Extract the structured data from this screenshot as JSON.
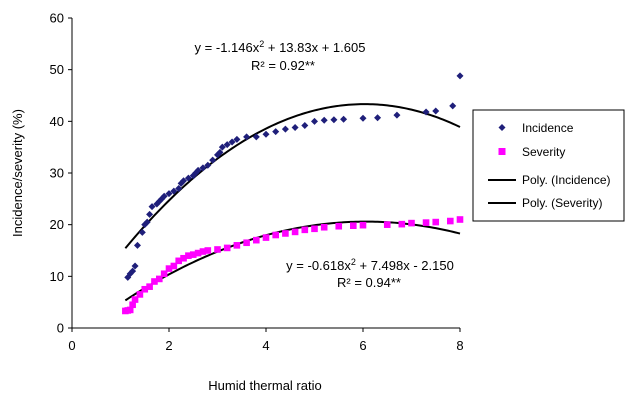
{
  "chart_data": {
    "type": "scatter",
    "xlabel": "Humid thermal ratio",
    "ylabel": "Incidence/severity (%)",
    "xlim": [
      0,
      8
    ],
    "ylim": [
      0,
      60
    ],
    "x_ticks": [
      "0",
      "2",
      "4",
      "6",
      "8"
    ],
    "y_ticks": [
      "0",
      "10",
      "20",
      "30",
      "40",
      "50",
      "60"
    ],
    "grid": false,
    "legend_position": "right",
    "series": [
      {
        "name": "Incidence",
        "marker": "diamond",
        "color": "#1f1f7a",
        "points": [
          [
            1.15,
            9.8
          ],
          [
            1.2,
            10.5
          ],
          [
            1.25,
            11
          ],
          [
            1.3,
            12
          ],
          [
            1.35,
            16
          ],
          [
            1.45,
            18.5
          ],
          [
            1.5,
            20
          ],
          [
            1.55,
            20.5
          ],
          [
            1.6,
            22
          ],
          [
            1.65,
            23.5
          ],
          [
            1.75,
            24
          ],
          [
            1.8,
            24.5
          ],
          [
            1.85,
            25
          ],
          [
            1.9,
            25.5
          ],
          [
            2.0,
            26
          ],
          [
            2.1,
            26.5
          ],
          [
            2.2,
            27
          ],
          [
            2.25,
            28
          ],
          [
            2.3,
            28.5
          ],
          [
            2.4,
            29
          ],
          [
            2.5,
            29.5
          ],
          [
            2.55,
            30
          ],
          [
            2.6,
            30.5
          ],
          [
            2.7,
            31
          ],
          [
            2.8,
            31.5
          ],
          [
            2.9,
            32.5
          ],
          [
            3.0,
            33.5
          ],
          [
            3.05,
            34
          ],
          [
            3.1,
            35
          ],
          [
            3.2,
            35.5
          ],
          [
            3.3,
            36
          ],
          [
            3.4,
            36.5
          ],
          [
            3.6,
            37
          ],
          [
            3.8,
            37
          ],
          [
            4.0,
            37.5
          ],
          [
            4.2,
            38
          ],
          [
            4.4,
            38.5
          ],
          [
            4.6,
            38.8
          ],
          [
            4.8,
            39.2
          ],
          [
            5.0,
            40
          ],
          [
            5.2,
            40.2
          ],
          [
            5.4,
            40.3
          ],
          [
            5.6,
            40.4
          ],
          [
            6.0,
            40.6
          ],
          [
            6.3,
            40.7
          ],
          [
            6.7,
            41.2
          ],
          [
            7.3,
            41.8
          ],
          [
            7.5,
            42
          ],
          [
            7.85,
            43
          ],
          [
            8.0,
            48.8
          ]
        ]
      },
      {
        "name": "Severity",
        "marker": "square",
        "color": "#ff00ff",
        "points": [
          [
            1.1,
            3.3
          ],
          [
            1.15,
            3.4
          ],
          [
            1.2,
            3.5
          ],
          [
            1.25,
            4.5
          ],
          [
            1.3,
            5.5
          ],
          [
            1.4,
            6.5
          ],
          [
            1.5,
            7.5
          ],
          [
            1.6,
            8
          ],
          [
            1.7,
            9
          ],
          [
            1.8,
            9.5
          ],
          [
            1.9,
            10.5
          ],
          [
            2.0,
            11.5
          ],
          [
            2.1,
            12
          ],
          [
            2.2,
            13
          ],
          [
            2.3,
            13.5
          ],
          [
            2.4,
            14
          ],
          [
            2.5,
            14.2
          ],
          [
            2.6,
            14.5
          ],
          [
            2.7,
            14.8
          ],
          [
            2.8,
            15
          ],
          [
            3.0,
            15.2
          ],
          [
            3.2,
            15.5
          ],
          [
            3.4,
            16
          ],
          [
            3.6,
            16.5
          ],
          [
            3.8,
            17
          ],
          [
            4.0,
            17.5
          ],
          [
            4.2,
            18
          ],
          [
            4.4,
            18.3
          ],
          [
            4.6,
            18.6
          ],
          [
            4.8,
            19
          ],
          [
            5.0,
            19.2
          ],
          [
            5.2,
            19.5
          ],
          [
            5.5,
            19.7
          ],
          [
            5.8,
            19.8
          ],
          [
            6.0,
            19.9
          ],
          [
            6.5,
            20
          ],
          [
            6.8,
            20.1
          ],
          [
            7.0,
            20.3
          ],
          [
            7.3,
            20.4
          ],
          [
            7.5,
            20.5
          ],
          [
            7.8,
            20.7
          ],
          [
            8.0,
            21
          ]
        ]
      },
      {
        "name": "Poly. (Incidence)",
        "type": "line",
        "color": "#000000",
        "coefficients": [
          -1.146,
          13.83,
          1.605
        ]
      },
      {
        "name": "Poly. (Severity)",
        "type": "line",
        "color": "#000000",
        "coefficients": [
          -0.618,
          7.498,
          -2.15
        ]
      }
    ],
    "annotations": [
      {
        "eq_main": "y = -1.146x",
        "eq_sup": "2",
        "eq_tail": " + 13.83x + 1.605",
        "r2": "R² = 0.92**"
      },
      {
        "eq_main": "y = -0.618x",
        "eq_sup": "2",
        "eq_tail": " + 7.498x - 2.150",
        "r2": "R² = 0.94**"
      }
    ]
  }
}
